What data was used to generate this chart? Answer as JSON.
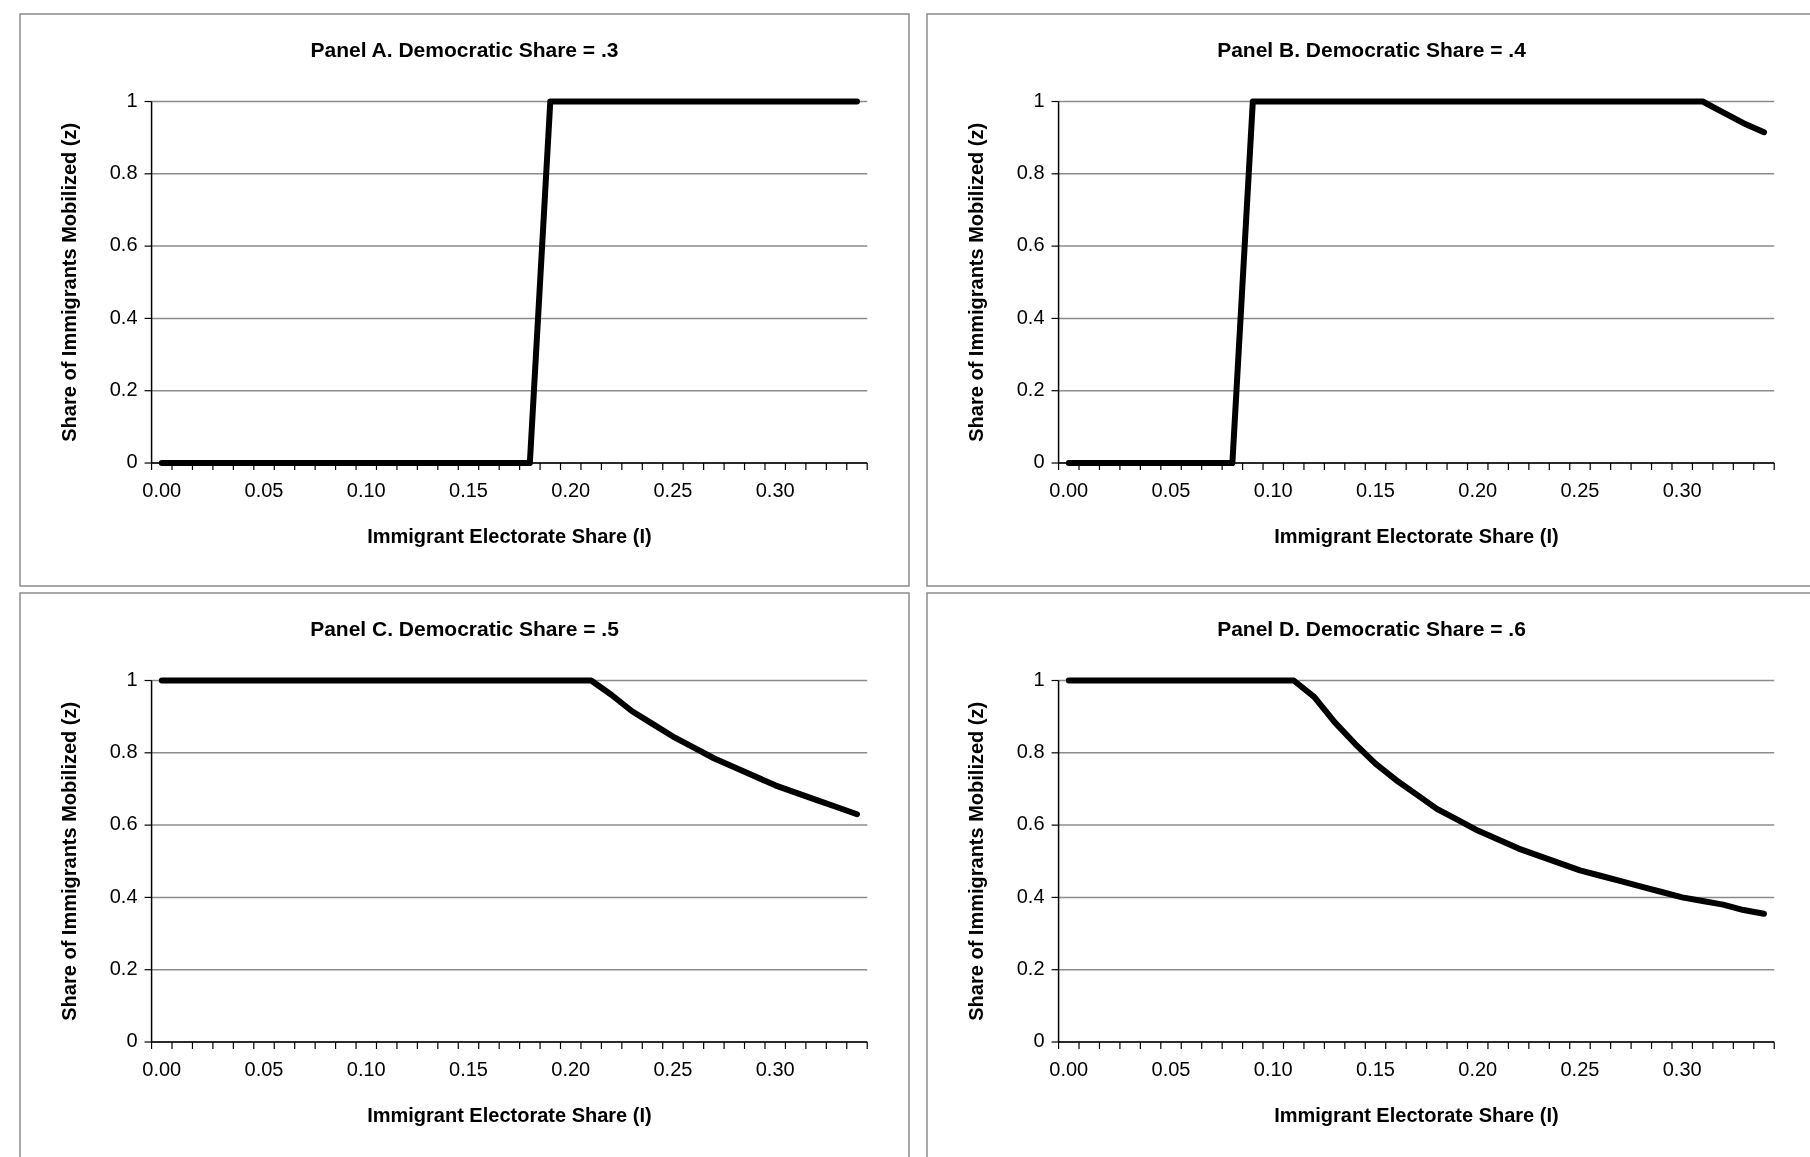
{
  "chart_data": [
    {
      "type": "line",
      "title": "Panel A. Democratic Share = .3",
      "xlabel": "Immigrant Electorate Share (I)",
      "ylabel": "Share of Immigrants Mobilized (z)",
      "x": [
        0,
        0.01,
        0.02,
        0.03,
        0.04,
        0.05,
        0.06,
        0.07,
        0.08,
        0.09,
        0.1,
        0.11,
        0.12,
        0.13,
        0.14,
        0.15,
        0.16,
        0.17,
        0.18,
        0.19,
        0.2,
        0.21,
        0.22,
        0.23,
        0.24,
        0.25,
        0.26,
        0.27,
        0.28,
        0.29,
        0.3,
        0.31,
        0.32,
        0.33,
        0.34
      ],
      "series": [
        {
          "color": "#000000",
          "values": [
            0,
            0,
            0,
            0,
            0,
            0,
            0,
            0,
            0,
            0,
            0,
            0,
            0,
            0,
            0,
            0,
            0,
            0,
            0,
            1,
            1,
            1,
            1,
            1,
            1,
            1,
            1,
            1,
            1,
            1,
            1,
            1,
            1,
            1,
            1
          ]
        }
      ],
      "xlim": [
        -0.005,
        0.345
      ],
      "xticks": [
        {
          "value": 0,
          "label": "0.00"
        },
        {
          "value": 0.05,
          "label": "0.05"
        },
        {
          "value": 0.1,
          "label": "0.10"
        },
        {
          "value": 0.15,
          "label": "0.15"
        },
        {
          "value": 0.2,
          "label": "0.20"
        },
        {
          "value": 0.25,
          "label": "0.25"
        },
        {
          "value": 0.3,
          "label": "0.30"
        }
      ],
      "ylim": [
        0,
        1
      ],
      "yticks": [
        0,
        0.2,
        0.4,
        0.6,
        0.8,
        1
      ],
      "grid": "y",
      "marker": "none",
      "line_style": "solid"
    },
    {
      "type": "line",
      "title": "Panel B. Democratic Share = .4",
      "xlabel": "Immigrant Electorate Share (I)",
      "ylabel": "Share of Immigrants Mobilized (z)",
      "x": [
        0,
        0.01,
        0.02,
        0.03,
        0.04,
        0.05,
        0.06,
        0.07,
        0.08,
        0.09,
        0.1,
        0.11,
        0.12,
        0.13,
        0.14,
        0.15,
        0.16,
        0.17,
        0.18,
        0.19,
        0.2,
        0.21,
        0.22,
        0.23,
        0.24,
        0.25,
        0.26,
        0.27,
        0.28,
        0.29,
        0.3,
        0.31,
        0.32,
        0.33,
        0.34
      ],
      "series": [
        {
          "color": "#000000",
          "values": [
            0,
            0,
            0,
            0,
            0,
            0,
            0,
            0,
            0,
            1,
            1,
            1,
            1,
            1,
            1,
            1,
            1,
            1,
            1,
            1,
            1,
            1,
            1,
            1,
            1,
            1,
            1,
            1,
            1,
            1,
            1,
            1,
            0.97,
            0.94,
            0.915
          ]
        }
      ],
      "xlim": [
        -0.005,
        0.345
      ],
      "xticks": [
        {
          "value": 0,
          "label": "0.00"
        },
        {
          "value": 0.05,
          "label": "0.05"
        },
        {
          "value": 0.1,
          "label": "0.10"
        },
        {
          "value": 0.15,
          "label": "0.15"
        },
        {
          "value": 0.2,
          "label": "0.20"
        },
        {
          "value": 0.25,
          "label": "0.25"
        },
        {
          "value": 0.3,
          "label": "0.30"
        }
      ],
      "ylim": [
        0,
        1
      ],
      "yticks": [
        0,
        0.2,
        0.4,
        0.6,
        0.8,
        1
      ],
      "grid": "y",
      "marker": "none",
      "line_style": "solid"
    },
    {
      "type": "line",
      "title": "Panel C. Democratic Share = .5",
      "xlabel": "Immigrant Electorate Share (I)",
      "ylabel": "Share of Immigrants Mobilized (z)",
      "x": [
        0,
        0.01,
        0.02,
        0.03,
        0.04,
        0.05,
        0.06,
        0.07,
        0.08,
        0.09,
        0.1,
        0.11,
        0.12,
        0.13,
        0.14,
        0.15,
        0.16,
        0.17,
        0.18,
        0.19,
        0.2,
        0.21,
        0.22,
        0.23,
        0.24,
        0.25,
        0.26,
        0.27,
        0.28,
        0.29,
        0.3,
        0.31,
        0.32,
        0.33,
        0.34
      ],
      "series": [
        {
          "color": "#000000",
          "values": [
            1,
            1,
            1,
            1,
            1,
            1,
            1,
            1,
            1,
            1,
            1,
            1,
            1,
            1,
            1,
            1,
            1,
            1,
            1,
            1,
            1,
            1,
            0.96,
            0.915,
            0.88,
            0.845,
            0.815,
            0.785,
            0.76,
            0.735,
            0.71,
            0.69,
            0.67,
            0.65,
            0.63
          ]
        }
      ],
      "xlim": [
        -0.005,
        0.345
      ],
      "xticks": [
        {
          "value": 0,
          "label": "0.00"
        },
        {
          "value": 0.05,
          "label": "0.05"
        },
        {
          "value": 0.1,
          "label": "0.10"
        },
        {
          "value": 0.15,
          "label": "0.15"
        },
        {
          "value": 0.2,
          "label": "0.20"
        },
        {
          "value": 0.25,
          "label": "0.25"
        },
        {
          "value": 0.3,
          "label": "0.30"
        }
      ],
      "ylim": [
        0,
        1
      ],
      "yticks": [
        0,
        0.2,
        0.4,
        0.6,
        0.8,
        1
      ],
      "grid": "y",
      "marker": "none",
      "line_style": "solid"
    },
    {
      "type": "line",
      "title": "Panel D. Democratic Share = .6",
      "xlabel": "Immigrant Electorate Share (I)",
      "ylabel": "Share of Immigrants Mobilized (z)",
      "x": [
        0,
        0.01,
        0.02,
        0.03,
        0.04,
        0.05,
        0.06,
        0.07,
        0.08,
        0.09,
        0.1,
        0.11,
        0.12,
        0.13,
        0.14,
        0.15,
        0.16,
        0.17,
        0.18,
        0.19,
        0.2,
        0.21,
        0.22,
        0.23,
        0.24,
        0.25,
        0.26,
        0.27,
        0.28,
        0.29,
        0.3,
        0.31,
        0.32,
        0.33,
        0.34
      ],
      "series": [
        {
          "color": "#000000",
          "values": [
            1,
            1,
            1,
            1,
            1,
            1,
            1,
            1,
            1,
            1,
            1,
            1,
            0.955,
            0.885,
            0.825,
            0.77,
            0.725,
            0.685,
            0.645,
            0.615,
            0.585,
            0.56,
            0.535,
            0.515,
            0.495,
            0.475,
            0.46,
            0.445,
            0.43,
            0.415,
            0.4,
            0.39,
            0.38,
            0.365,
            0.355
          ]
        }
      ],
      "xlim": [
        -0.005,
        0.345
      ],
      "xticks": [
        {
          "value": 0,
          "label": "0.00"
        },
        {
          "value": 0.05,
          "label": "0.05"
        },
        {
          "value": 0.1,
          "label": "0.10"
        },
        {
          "value": 0.15,
          "label": "0.15"
        },
        {
          "value": 0.2,
          "label": "0.20"
        },
        {
          "value": 0.25,
          "label": "0.25"
        },
        {
          "value": 0.3,
          "label": "0.30"
        }
      ],
      "ylim": [
        0,
        1
      ],
      "yticks": [
        0,
        0.2,
        0.4,
        0.6,
        0.8,
        1
      ],
      "grid": "y",
      "marker": "none",
      "line_style": "solid"
    }
  ]
}
